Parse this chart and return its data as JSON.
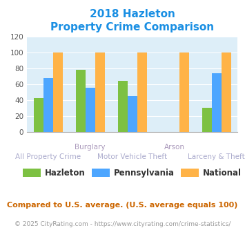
{
  "title_line1": "2018 Hazleton",
  "title_line2": "Property Crime Comparison",
  "categories": [
    "All Property Crime",
    "Burglary",
    "Motor Vehicle Theft",
    "Arson",
    "Larceny & Theft"
  ],
  "x_labels_top": [
    "",
    "Burglary",
    "",
    "Arson",
    ""
  ],
  "x_labels_bottom": [
    "All Property Crime",
    "",
    "Motor Vehicle Theft",
    "",
    "Larceny & Theft"
  ],
  "series": {
    "Hazleton": [
      43,
      78,
      64,
      0,
      31
    ],
    "Pennsylvania": [
      68,
      56,
      45,
      0,
      74
    ],
    "National": [
      100,
      100,
      100,
      100,
      100
    ]
  },
  "colors": {
    "Hazleton": "#7dc142",
    "Pennsylvania": "#4da6ff",
    "National": "#ffb347"
  },
  "ylim": [
    0,
    120
  ],
  "yticks": [
    0,
    20,
    40,
    60,
    80,
    100,
    120
  ],
  "title_color": "#1a8fe3",
  "axis_bg_color": "#ddeef8",
  "note_text": "Compared to U.S. average. (U.S. average equals 100)",
  "footer_text": "© 2025 CityRating.com - https://www.cityrating.com/crime-statistics/",
  "note_color": "#cc6600",
  "footer_color": "#999999",
  "xlabel_top_color": "#aa99bb",
  "xlabel_bottom_color": "#aaaacc",
  "title_fontsize": 11,
  "note_fontsize": 8,
  "footer_fontsize": 6.5,
  "xlabel_fontsize": 7.5,
  "legend_fontsize": 8.5
}
